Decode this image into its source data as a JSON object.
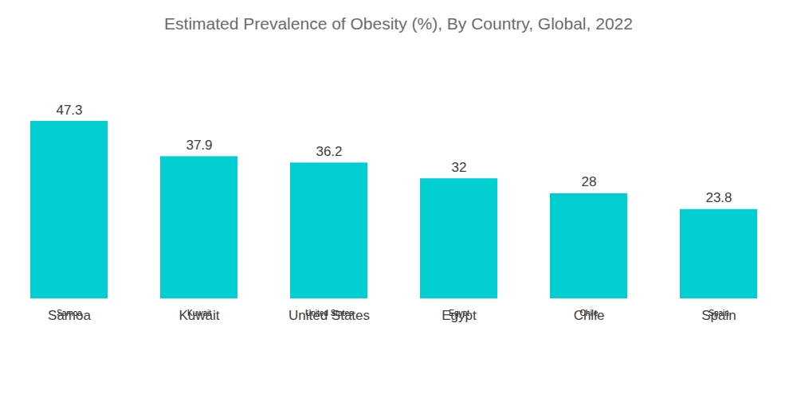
{
  "chart_data": {
    "type": "bar",
    "title": "Estimated Prevalence of Obesity (%), By Country, Global, 2022",
    "categories": [
      "Samoa",
      "Kuwait",
      "United States",
      "Egypt",
      "Chile",
      "Spain"
    ],
    "values": [
      47.3,
      37.9,
      36.2,
      32,
      28,
      23.8
    ],
    "color": "#00ced1",
    "data_labels": true,
    "tick_labels": "x"
  }
}
